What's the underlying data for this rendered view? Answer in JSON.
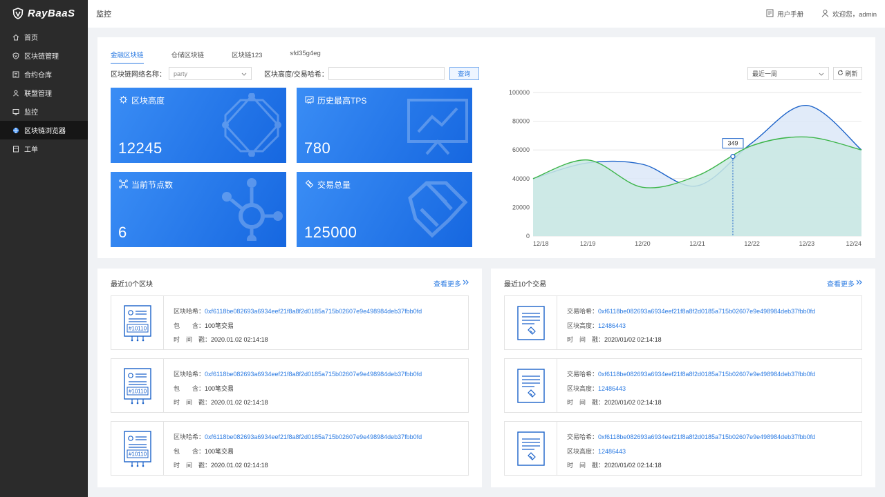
{
  "brand": {
    "name": "RayBaaS"
  },
  "sidebar": {
    "items": [
      {
        "label": "首页",
        "icon": "home-icon"
      },
      {
        "label": "区块链管理",
        "icon": "shield-icon"
      },
      {
        "label": "合约仓库",
        "icon": "contract-icon"
      },
      {
        "label": "联盟管理",
        "icon": "user-icon"
      },
      {
        "label": "监控",
        "icon": "monitor-icon"
      },
      {
        "label": "区块链浏览器",
        "icon": "globe-icon",
        "active": true
      },
      {
        "label": "工单",
        "icon": "ticket-icon"
      }
    ]
  },
  "header": {
    "title": "监控",
    "manual_label": "用户手册",
    "welcome_label": "欢迎您，admin"
  },
  "tabs": [
    {
      "label": "金融区块链",
      "active": true
    },
    {
      "label": "仓储区块链"
    },
    {
      "label": "区块链123"
    },
    {
      "label": "sfd35g4eg"
    }
  ],
  "filter": {
    "network_label": "区块链网络名称：",
    "network_value": "party",
    "height_label": "区块高度/交易哈希：",
    "height_value": "",
    "query_label": "查询"
  },
  "chart_controls": {
    "range_value": "最近一周",
    "refresh_label": "刷新"
  },
  "stats": [
    {
      "title": "区块高度",
      "value": "12245",
      "icon": "block-height-icon"
    },
    {
      "title": "历史最高TPS",
      "value": "780",
      "icon": "tps-icon"
    },
    {
      "title": "当前节点数",
      "value": "6",
      "icon": "nodes-icon"
    },
    {
      "title": "交易总量",
      "value": "125000",
      "icon": "transaction-total-icon"
    }
  ],
  "chart_data": {
    "type": "area",
    "categories": [
      "12/18",
      "12/19",
      "12/20",
      "12/21",
      "12/22",
      "12/23",
      "12/24"
    ],
    "ylim": [
      0,
      100000
    ],
    "yticks": [
      0,
      20000,
      40000,
      60000,
      80000,
      100000
    ],
    "series": [
      {
        "color": "#1b62c9",
        "fill": "#dce8f8",
        "values": [
          40000,
          51000,
          50000,
          35000,
          65000,
          91000,
          60000
        ]
      },
      {
        "color": "#3db54a",
        "fill": "#c9e9e3",
        "values": [
          40000,
          53000,
          34000,
          42000,
          63000,
          69000,
          60000
        ]
      }
    ],
    "tooltip": {
      "label": "349",
      "x_index": 3.65
    }
  },
  "blocks_panel": {
    "title": "最近10个区块",
    "more_label": "查看更多",
    "items": [
      {
        "badge": "#10110",
        "hash_label": "区块哈希：",
        "hash": "0xf6118be082693a6934eef21f8a8f2d0185a715b02607e9e498984deb37fbb0fd",
        "contains_label": "包　　含：",
        "contains": "100笔交易",
        "time_label": "时　间　戳：",
        "time": "2020.01.02 02:14:18"
      },
      {
        "badge": "#10110",
        "hash_label": "区块哈希：",
        "hash": "0xf6118be082693a6934eef21f8a8f2d0185a715b02607e9e498984deb37fbb0fd",
        "contains_label": "包　　含：",
        "contains": "100笔交易",
        "time_label": "时　间　戳：",
        "time": "2020.01.02 02:14:18"
      },
      {
        "badge": "#10110",
        "hash_label": "区块哈希：",
        "hash": "0xf6118be082693a6934eef21f8a8f2d0185a715b02607e9e498984deb37fbb0fd",
        "contains_label": "包　　含：",
        "contains": "100笔交易",
        "time_label": "时　间　戳：",
        "time": "2020.01.02 02:14:18"
      }
    ]
  },
  "tx_panel": {
    "title": "最近10个交易",
    "more_label": "查看更多",
    "items": [
      {
        "hash_label": "交易哈希：",
        "hash": "0xf6118be082693a6934eef21f8a8f2d0185a715b02607e9e498984deb37fbb0fd",
        "height_label": "区块高度：",
        "height": "12486443",
        "time_label": "时　间　戳：",
        "time": "2020/01/02 02:14:18"
      },
      {
        "hash_label": "交易哈希：",
        "hash": "0xf6118be082693a6934eef21f8a8f2d0185a715b02607e9e498984deb37fbb0fd",
        "height_label": "区块高度：",
        "height": "12486443",
        "time_label": "时　间　戳：",
        "time": "2020/01/02 02:14:18"
      },
      {
        "hash_label": "交易哈希：",
        "hash": "0xf6118be082693a6934eef21f8a8f2d0185a715b02607e9e498984deb37fbb0fd",
        "height_label": "区块高度：",
        "height": "12486443",
        "time_label": "时　间　戳：",
        "time": "2020/01/02 02:14:18"
      }
    ]
  },
  "colors": {
    "accent": "#2a7ae2",
    "sidebar": "#2b2b2b",
    "card": "#1f73e8"
  }
}
